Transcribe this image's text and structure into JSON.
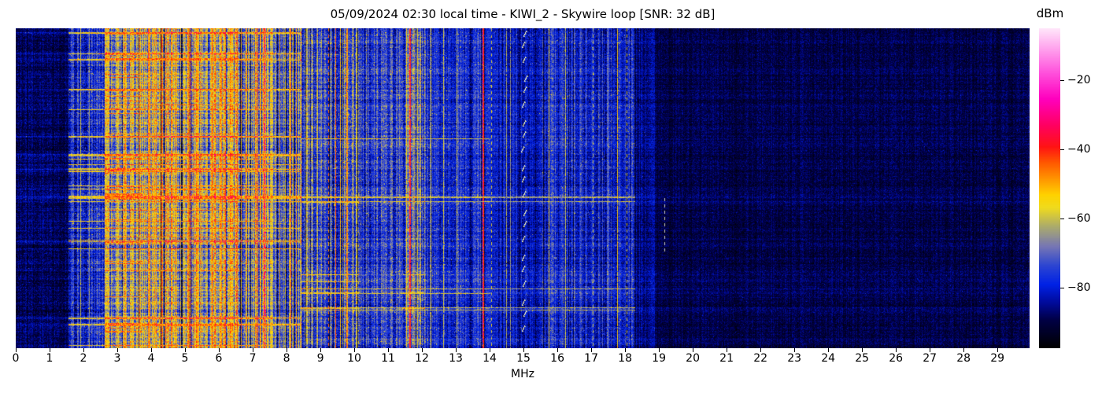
{
  "figure": {
    "title": "05/09/2024 02:30 local time - KIWI_2 - Skywire loop [SNR: 32 dB]",
    "background": "#ffffff"
  },
  "x_axis": {
    "label": "MHz",
    "tick_values": [
      0,
      1,
      2,
      3,
      4,
      5,
      6,
      7,
      8,
      9,
      10,
      11,
      12,
      13,
      14,
      15,
      16,
      17,
      18,
      19,
      20,
      21,
      22,
      23,
      24,
      25,
      26,
      27,
      28,
      29
    ],
    "tick_labels": [
      "0",
      "1",
      "2",
      "3",
      "4",
      "5",
      "6",
      "7",
      "8",
      "9",
      "10",
      "11",
      "12",
      "13",
      "14",
      "15",
      "16",
      "17",
      "18",
      "19",
      "20",
      "21",
      "22",
      "23",
      "24",
      "25",
      "26",
      "27",
      "28",
      "29"
    ]
  },
  "colorbar": {
    "label": "dBm",
    "tick_values": [
      -20,
      -40,
      -60,
      -80
    ],
    "tick_labels": [
      "−20",
      "−40",
      "−60",
      "−80"
    ],
    "vmin": -97.5,
    "vmax": -5
  },
  "chart_data": {
    "type": "heatmap",
    "title": "05/09/2024 02:30 local time - KIWI_2 - Skywire loop [SNR: 32 dB]",
    "xlabel": "MHz",
    "ylabel": "",
    "orientation": "frequency on x, time on y (no y tick labels)",
    "x_range": [
      0,
      29.95
    ],
    "x_ticks": [
      0,
      1,
      2,
      3,
      4,
      5,
      6,
      7,
      8,
      9,
      10,
      11,
      12,
      13,
      14,
      15,
      16,
      17,
      18,
      19,
      20,
      21,
      22,
      23,
      24,
      25,
      26,
      27,
      28,
      29
    ],
    "y_ticks": [],
    "colorbar_label": "dBm",
    "colorbar_ticks": [
      -20,
      -40,
      -60,
      -80
    ],
    "value_range_dbm": [
      -97.5,
      -5
    ],
    "colormap_stops": [
      [
        0.0,
        "#000000"
      ],
      [
        0.09,
        "#000046"
      ],
      [
        0.14,
        "#000a96"
      ],
      [
        0.2,
        "#0022e6"
      ],
      [
        0.26,
        "#2e46d2"
      ],
      [
        0.32,
        "#7878b4"
      ],
      [
        0.38,
        "#aaaa6e"
      ],
      [
        0.44,
        "#f0dc1e"
      ],
      [
        0.48,
        "#ffd200"
      ],
      [
        0.53,
        "#ff9600"
      ],
      [
        0.58,
        "#ff5a00"
      ],
      [
        0.63,
        "#ff1414"
      ],
      [
        0.7,
        "#ff0064"
      ],
      [
        0.78,
        "#ff00be"
      ],
      [
        0.86,
        "#ff50dc"
      ],
      [
        0.93,
        "#ff9bec"
      ],
      [
        1.0,
        "#ffe6fa"
      ]
    ],
    "bands": [
      {
        "f0": 0.0,
        "f1": 1.55,
        "base": 0.1,
        "colvar": 0.03,
        "rowvar": 0.05,
        "sthresh": 9,
        "slevel": 0,
        "noise": 0.1,
        "sparkP": 0.02,
        "sparkA": 0.12,
        "dipP": 0,
        "dipA": 0
      },
      {
        "f0": 1.55,
        "f1": 2.62,
        "base": 0.22,
        "colvar": 0.08,
        "rowvar": 0.09,
        "sthresh": 0.6,
        "slevel": 0.44,
        "noise": 0.14,
        "sparkP": 0.06,
        "sparkA": 0.18,
        "dipP": 0.06,
        "dipA": 0.1
      },
      {
        "f0": 2.62,
        "f1": 3.75,
        "base": 0.37,
        "colvar": 0.1,
        "rowvar": 0.13,
        "sthresh": 0.4,
        "slevel": 0.55,
        "noise": 0.16,
        "sparkP": 0.1,
        "sparkA": 0.16,
        "dipP": 0.1,
        "dipA": 0.16
      },
      {
        "f0": 3.75,
        "f1": 6.6,
        "base": 0.42,
        "colvar": 0.14,
        "rowvar": 0.15,
        "sthresh": 0.55,
        "slevel": 0.53,
        "noise": 0.15,
        "sparkP": 0.07,
        "sparkA": 0.14,
        "dipP": 0.14,
        "dipA": 0.2
      },
      {
        "f0": 6.6,
        "f1": 7.55,
        "base": 0.4,
        "colvar": 0.16,
        "rowvar": 0.13,
        "sthresh": 0.6,
        "slevel": 0.5,
        "noise": 0.15,
        "sparkP": 0.06,
        "sparkA": 0.13,
        "dipP": 0.18,
        "dipA": 0.2
      },
      {
        "f0": 7.55,
        "f1": 8.45,
        "base": 0.34,
        "colvar": 0.17,
        "rowvar": 0.11,
        "sthresh": 0.65,
        "slevel": 0.48,
        "noise": 0.15,
        "sparkP": 0.06,
        "sparkA": 0.14,
        "dipP": 0.25,
        "dipA": 0.16
      },
      {
        "f0": 8.45,
        "f1": 9.3,
        "base": 0.3,
        "colvar": 0.14,
        "rowvar": 0.09,
        "sthresh": 0.7,
        "slevel": 0.45,
        "noise": 0.14,
        "sparkP": 0.1,
        "sparkA": 0.16,
        "dipP": 0.25,
        "dipA": 0.12
      },
      {
        "f0": 9.3,
        "f1": 10.15,
        "base": 0.28,
        "colvar": 0.13,
        "rowvar": 0.08,
        "sthresh": 0.72,
        "slevel": 0.44,
        "noise": 0.14,
        "sparkP": 0.12,
        "sparkA": 0.18,
        "dipP": 0.2,
        "dipA": 0.1
      },
      {
        "f0": 10.15,
        "f1": 11.45,
        "base": 0.24,
        "colvar": 0.09,
        "rowvar": 0.07,
        "sthresh": 0.8,
        "slevel": 0.42,
        "noise": 0.13,
        "sparkP": 0.1,
        "sparkA": 0.18,
        "dipP": 0.15,
        "dipA": 0.08
      },
      {
        "f0": 11.45,
        "f1": 12.1,
        "base": 0.28,
        "colvar": 0.13,
        "rowvar": 0.08,
        "sthresh": 0.75,
        "slevel": 0.44,
        "noise": 0.14,
        "sparkP": 0.14,
        "sparkA": 0.18,
        "dipP": 0.15,
        "dipA": 0.09
      },
      {
        "f0": 12.1,
        "f1": 14.0,
        "base": 0.22,
        "colvar": 0.07,
        "rowvar": 0.06,
        "sthresh": 0.85,
        "slevel": 0.4,
        "noise": 0.12,
        "sparkP": 0.07,
        "sparkA": 0.18,
        "dipP": 0.12,
        "dipA": 0.07
      },
      {
        "f0": 14.0,
        "f1": 15.45,
        "base": 0.18,
        "colvar": 0.06,
        "rowvar": 0.05,
        "sthresh": 0.92,
        "slevel": 0.36,
        "noise": 0.11,
        "sparkP": 0.05,
        "sparkA": 0.14,
        "dipP": 0.1,
        "dipA": 0.06
      },
      {
        "f0": 15.45,
        "f1": 18.3,
        "base": 0.2,
        "colvar": 0.08,
        "rowvar": 0.06,
        "sthresh": 0.88,
        "slevel": 0.38,
        "noise": 0.12,
        "sparkP": 0.07,
        "sparkA": 0.15,
        "dipP": 0.12,
        "dipA": 0.07
      },
      {
        "f0": 18.3,
        "f1": 18.9,
        "base": 0.13,
        "colvar": 0.04,
        "rowvar": 0.04,
        "sthresh": 9,
        "slevel": 0,
        "noise": 0.1,
        "sparkP": 0.03,
        "sparkA": 0.1,
        "dipP": 0,
        "dipA": 0
      },
      {
        "f0": 18.9,
        "f1": 29.95,
        "base": 0.085,
        "colvar": 0.025,
        "rowvar": 0.03,
        "sthresh": 9,
        "slevel": 0,
        "noise": 0.09,
        "sparkP": 0.015,
        "sparkA": 0.08,
        "dipP": 0,
        "dipA": 0
      }
    ],
    "signals": [
      {
        "f": 1.9,
        "w": 1,
        "v": 0.4,
        "style": "solid"
      },
      {
        "f": 2.17,
        "w": 1,
        "v": 0.36,
        "style": "solid"
      },
      {
        "f": 3.2,
        "w": 2,
        "v": 0.6,
        "style": "solid"
      },
      {
        "f": 3.64,
        "w": 1,
        "v": 0.57,
        "style": "solid"
      },
      {
        "f": 3.92,
        "w": 2,
        "v": 0.6,
        "style": "solid"
      },
      {
        "f": 4.1,
        "w": 1,
        "v": 0.54,
        "style": "solid"
      },
      {
        "f": 4.3,
        "w": 2,
        "v": 0.6,
        "style": "solid"
      },
      {
        "f": 4.72,
        "w": 1,
        "v": 0.56,
        "style": "solid"
      },
      {
        "f": 5.08,
        "w": 2,
        "v": 0.6,
        "style": "solid"
      },
      {
        "f": 5.35,
        "w": 1,
        "v": 0.55,
        "style": "solid"
      },
      {
        "f": 5.78,
        "w": 2,
        "v": 0.6,
        "style": "solid"
      },
      {
        "f": 6.08,
        "w": 1,
        "v": 0.56,
        "style": "solid"
      },
      {
        "f": 6.52,
        "w": 2,
        "v": 0.65,
        "style": "solid"
      },
      {
        "f": 7.2,
        "w": 1,
        "v": 0.55,
        "style": "solid"
      },
      {
        "f": 7.33,
        "w": 3,
        "v": 0.74,
        "style": "solid"
      },
      {
        "f": 7.78,
        "w": 1,
        "v": 0.5,
        "style": "solid"
      },
      {
        "f": 8.12,
        "w": 1,
        "v": 0.58,
        "style": "solid"
      },
      {
        "f": 9.22,
        "w": 1,
        "v": 0.56,
        "style": "dotted"
      },
      {
        "f": 9.43,
        "w": 1,
        "v": 0.58,
        "style": "solid"
      },
      {
        "f": 9.57,
        "w": 1,
        "v": 0.5,
        "style": "solid"
      },
      {
        "f": 9.77,
        "w": 2,
        "v": 0.56,
        "style": "solid"
      },
      {
        "f": 9.95,
        "w": 1,
        "v": 0.46,
        "style": "solid"
      },
      {
        "f": 10.08,
        "w": 1,
        "v": 0.44,
        "style": "solid"
      },
      {
        "f": 11.53,
        "w": 1,
        "v": 0.46,
        "style": "solid"
      },
      {
        "f": 11.63,
        "w": 2,
        "v": 0.68,
        "style": "solid"
      },
      {
        "f": 11.85,
        "w": 1,
        "v": 0.44,
        "style": "solid"
      },
      {
        "f": 12.25,
        "w": 1,
        "v": 0.43,
        "style": "solid"
      },
      {
        "f": 12.62,
        "w": 1,
        "v": 0.42,
        "style": "solid"
      },
      {
        "f": 13.02,
        "w": 1,
        "v": 0.4,
        "style": "solid"
      },
      {
        "f": 13.78,
        "w": 2,
        "v": 0.66,
        "style": "solid"
      },
      {
        "f": 14.04,
        "w": 1,
        "v": 0.42,
        "style": "dotted"
      },
      {
        "f": 14.48,
        "w": 1,
        "v": 0.38,
        "style": "solid"
      },
      {
        "f": 14.6,
        "w": 1,
        "v": 0.36,
        "style": "solid"
      },
      {
        "f": 15.75,
        "w": 1,
        "v": 0.46,
        "style": "solid"
      },
      {
        "f": 15.87,
        "w": 1,
        "v": 0.36,
        "style": "dotted"
      },
      {
        "f": 16.23,
        "w": 1,
        "v": 0.4,
        "style": "solid"
      },
      {
        "f": 17.04,
        "w": 1,
        "v": 0.4,
        "style": "dotted"
      },
      {
        "f": 17.48,
        "w": 1,
        "v": 0.33,
        "style": "solid"
      },
      {
        "f": 17.77,
        "w": 1,
        "v": 0.48,
        "style": "solid"
      },
      {
        "f": 18.04,
        "w": 1,
        "v": 0.4,
        "style": "dotted"
      }
    ],
    "markers": [
      {
        "kind": "chirp-dashes",
        "f": 14.97,
        "color": "#ffffc8"
      },
      {
        "kind": "short-dash-column",
        "f": 19.17,
        "color": "#c8c8b4",
        "yFrac0": 0.53,
        "yFrac1": 0.69
      }
    ]
  }
}
